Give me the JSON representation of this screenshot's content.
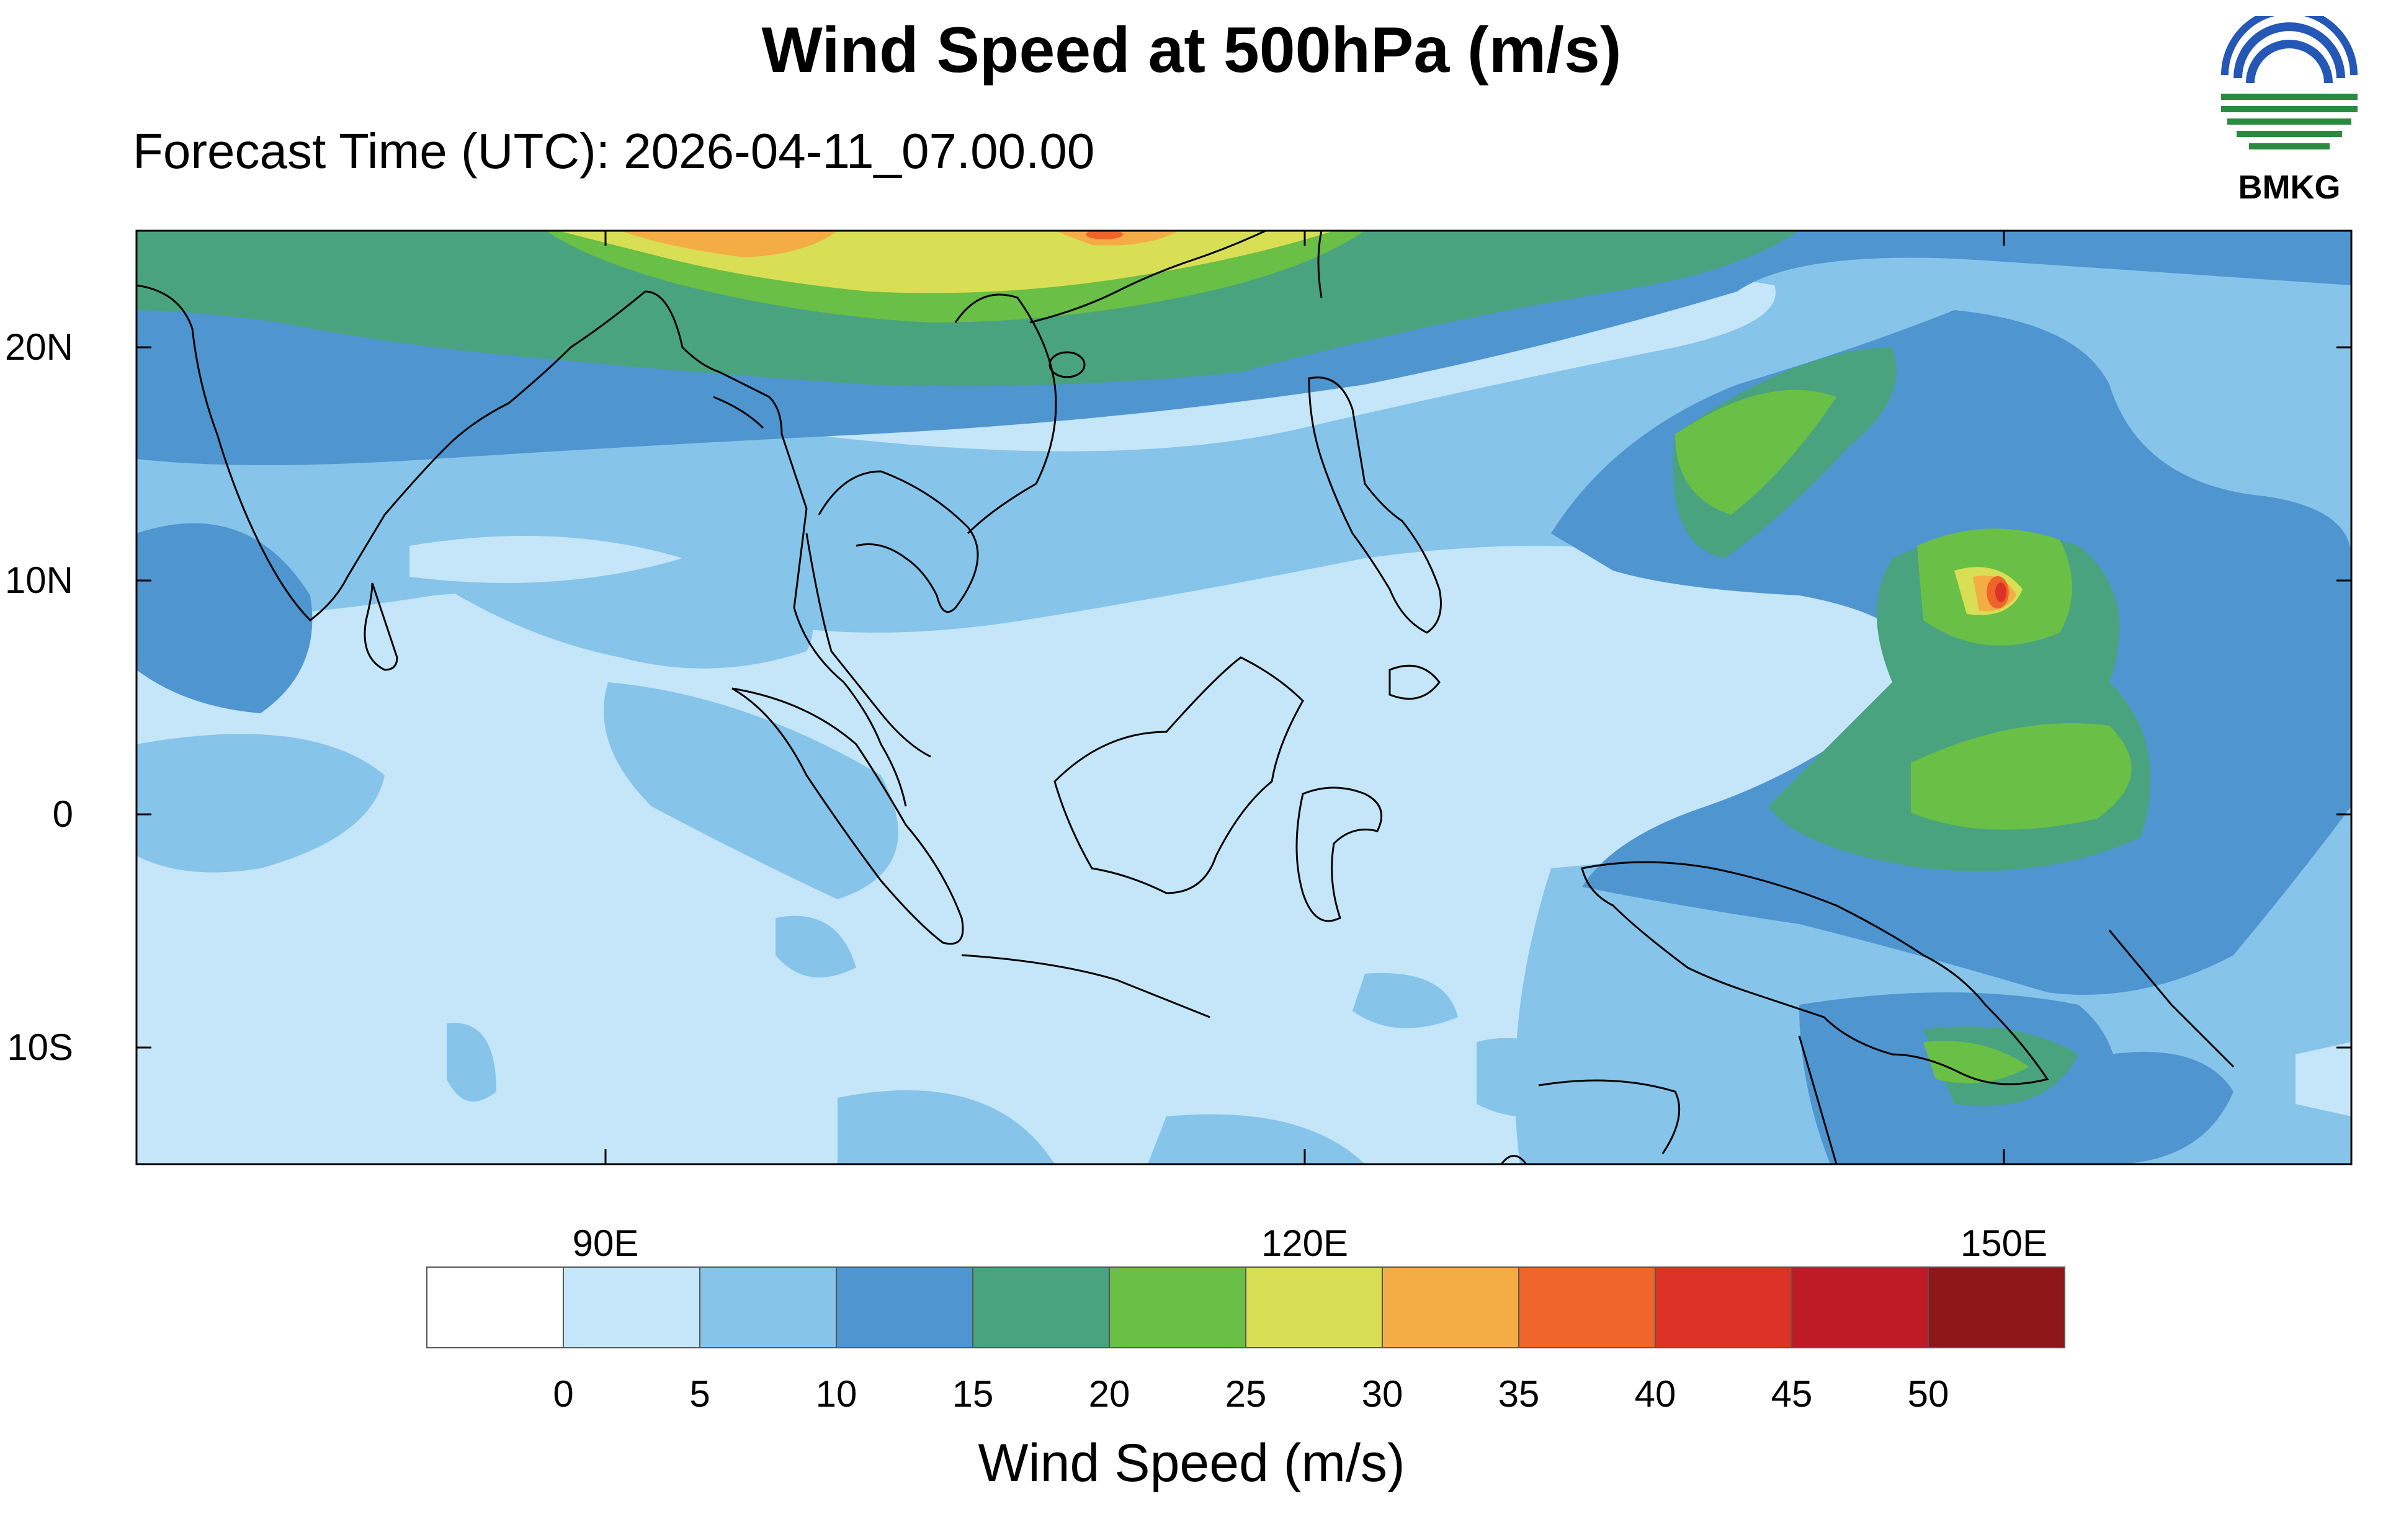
{
  "title": "Wind Speed at 500hPa (m/s)",
  "subtitle": "Forecast Time (UTC): 2026-04-11_07.00.00",
  "logo": {
    "text": "BMKG",
    "name": "bmkg-logo"
  },
  "map": {
    "lon_range": [
      68,
      163
    ],
    "lat_range": [
      -15,
      25
    ],
    "lat_ticks": [
      "20N",
      "10N",
      "0",
      "10S"
    ],
    "lon_ticks": [
      "90E",
      "120E",
      "150E"
    ],
    "features": [
      "typhoon-core",
      "jet-stream-north",
      "maritime-continent-coastlines"
    ]
  },
  "colorbar": {
    "title": "Wind Speed (m/s)",
    "labels": [
      "0",
      "5",
      "10",
      "15",
      "20",
      "25",
      "30",
      "35",
      "40",
      "45",
      "50"
    ],
    "colors": [
      "#ffffff",
      "#c4e6f8",
      "#86c4ea",
      "#4f95d0",
      "#4aa37f",
      "#6abf46",
      "#d8df55",
      "#f4ad45",
      "#ef6428",
      "#dd3226",
      "#be1b27",
      "#8f1719"
    ]
  }
}
